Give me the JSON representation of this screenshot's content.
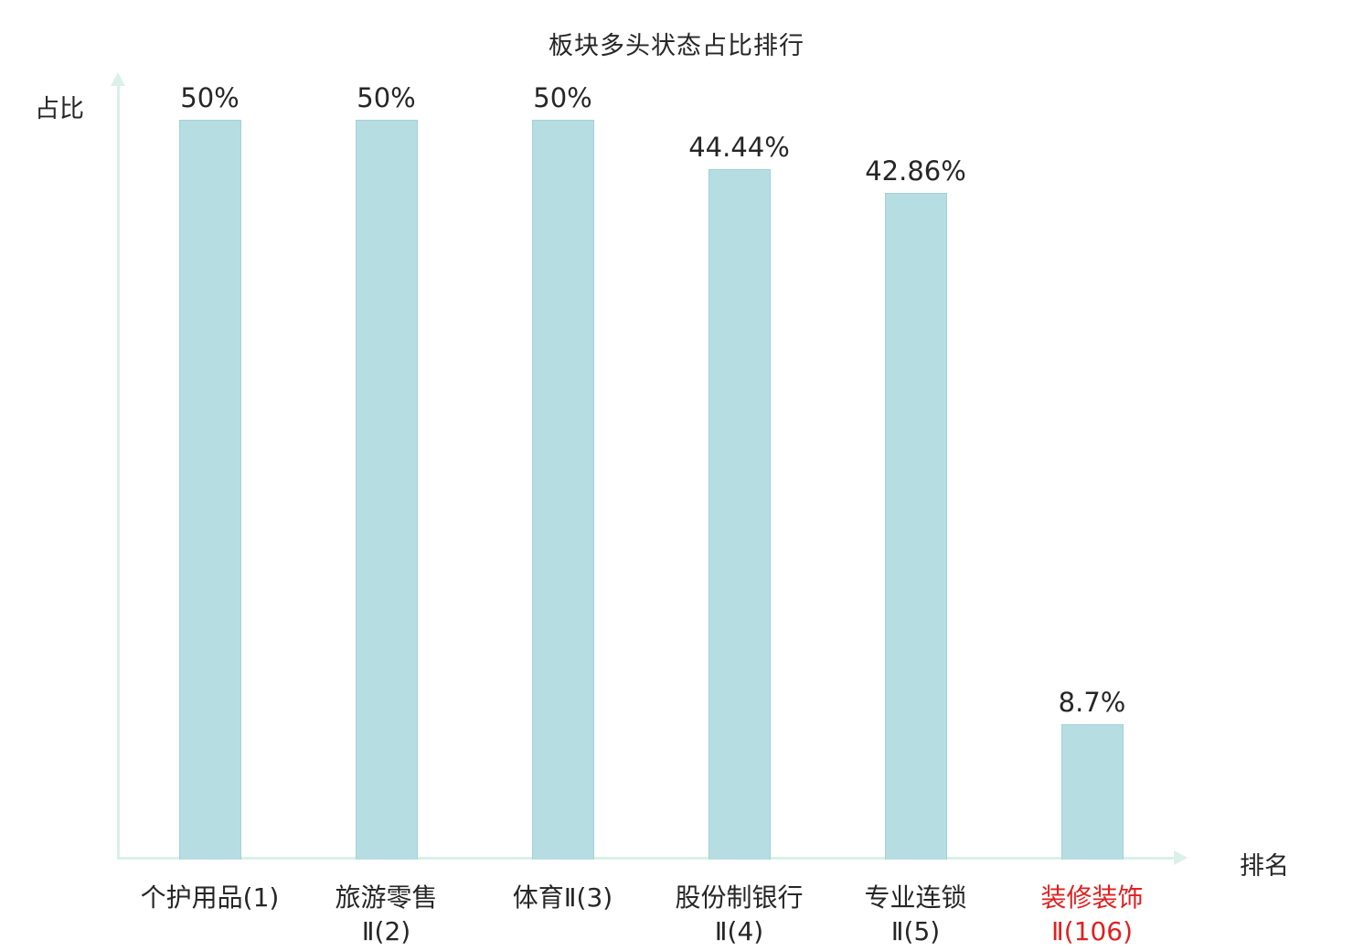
{
  "chart_data": {
    "type": "bar",
    "title": "板块多头状态占比排行",
    "xlabel": "排名",
    "ylabel": "占比",
    "categories": [
      "个护用品(1)",
      "旅游零售\nⅡ(2)",
      "体育Ⅱ(3)",
      "股份制银行\nⅡ(4)",
      "专业连锁\nⅡ(5)",
      "装修装饰\nⅡ(106)"
    ],
    "values": [
      50,
      50,
      50,
      44.44,
      42.86,
      8.7
    ],
    "value_labels": [
      "50%",
      "50%",
      "50%",
      "44.44%",
      "42.86%",
      "8.7%"
    ],
    "ylim": [
      0,
      50
    ],
    "grid": false,
    "legend": "none",
    "bar_color": "#b5dde2",
    "bar_border_color": "#a3d1d8",
    "axis_color": "#daf0e9",
    "text_color": "#262626",
    "highlight_index": 5,
    "highlight_color": "#e02020"
  }
}
